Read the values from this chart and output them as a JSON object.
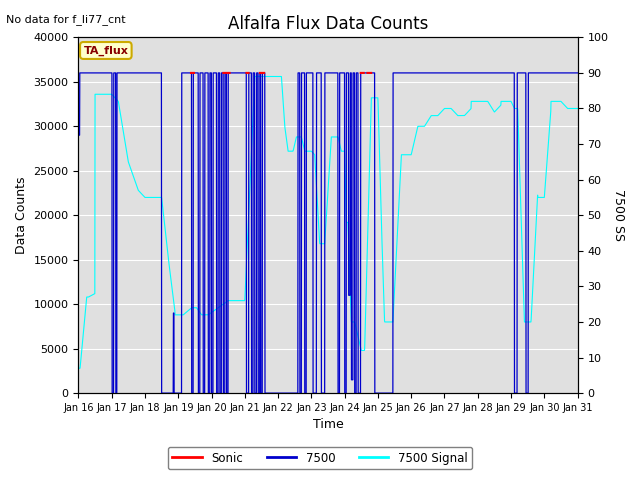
{
  "title": "Alfalfa Flux Data Counts",
  "subtitle": "No data for f_li77_cnt",
  "xlabel": "Time",
  "ylabel_left": "Data Counts",
  "ylabel_right": "7500 SS",
  "ylim_left": [
    0,
    40000
  ],
  "ylim_right": [
    0,
    100
  ],
  "xtick_labels": [
    "Jan 16",
    "Jan 17",
    "Jan 18",
    "Jan 19",
    "Jan 20",
    "Jan 21",
    "Jan 22",
    "Jan 23",
    "Jan 24",
    "Jan 25",
    "Jan 26",
    "Jan 27",
    "Jan 28",
    "Jan 29",
    "Jan 30",
    "Jan 31"
  ],
  "yticks_left": [
    0,
    5000,
    10000,
    15000,
    20000,
    25000,
    30000,
    35000,
    40000
  ],
  "yticks_right": [
    0,
    10,
    20,
    30,
    40,
    50,
    60,
    70,
    80,
    90,
    100
  ],
  "legend_labels": [
    "Sonic",
    "7500",
    "7500 Signal"
  ],
  "legend_colors": [
    "red",
    "#0000cc",
    "cyan"
  ],
  "bg_color": "#e0e0e0",
  "grid_color": "#ffffff",
  "annotation_box": "TA_flux",
  "annotation_fg": "#880000",
  "annotation_bg": "#ffffcc",
  "annotation_edge": "#ccaa00"
}
